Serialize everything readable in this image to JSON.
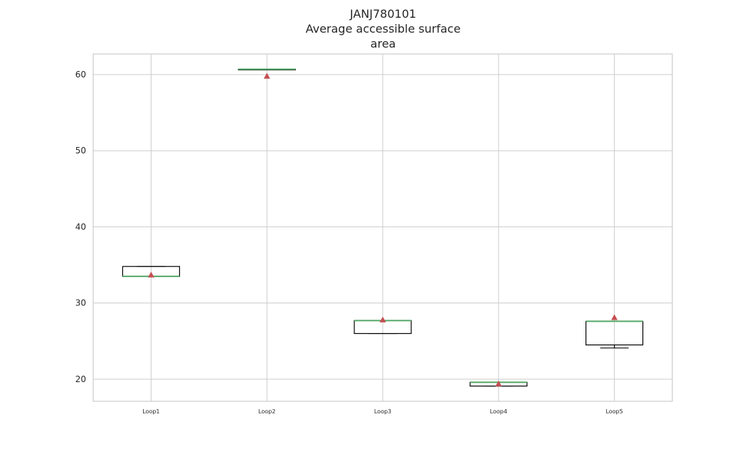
{
  "chart_data": {
    "type": "box",
    "title_lines": [
      "JANJ780101",
      "Average accessible surface",
      "area"
    ],
    "categories": [
      "Loop1",
      "Loop2",
      "Loop3",
      "Loop4",
      "Loop5"
    ],
    "boxes": [
      {
        "label": "Loop1",
        "whislo": 33.5,
        "q1": 33.5,
        "med": 33.5,
        "q3": 34.8,
        "whishi": 34.8,
        "mean": 33.7
      },
      {
        "label": "Loop2",
        "whislo": 60.7,
        "q1": 60.7,
        "med": 60.7,
        "q3": 60.7,
        "whishi": 60.7,
        "mean": 59.8
      },
      {
        "label": "Loop3",
        "whislo": 26.0,
        "q1": 26.0,
        "med": 27.7,
        "q3": 27.7,
        "whishi": 27.7,
        "mean": 27.8
      },
      {
        "label": "Loop4",
        "whislo": 19.1,
        "q1": 19.1,
        "med": 19.6,
        "q3": 19.6,
        "whishi": 19.6,
        "mean": 19.4
      },
      {
        "label": "Loop5",
        "whislo": 24.1,
        "q1": 24.5,
        "med": 27.6,
        "q3": 27.6,
        "whishi": 27.6,
        "mean": 28.1
      }
    ],
    "ylim": [
      17.1,
      62.7
    ],
    "yticks": [
      20,
      30,
      40,
      50,
      60
    ],
    "grid": true,
    "colors": {
      "box": "#000000",
      "median": "#55a868",
      "mean_marker": "#c44e52",
      "grid": "#cccccc",
      "frame": "#cccccc"
    }
  }
}
